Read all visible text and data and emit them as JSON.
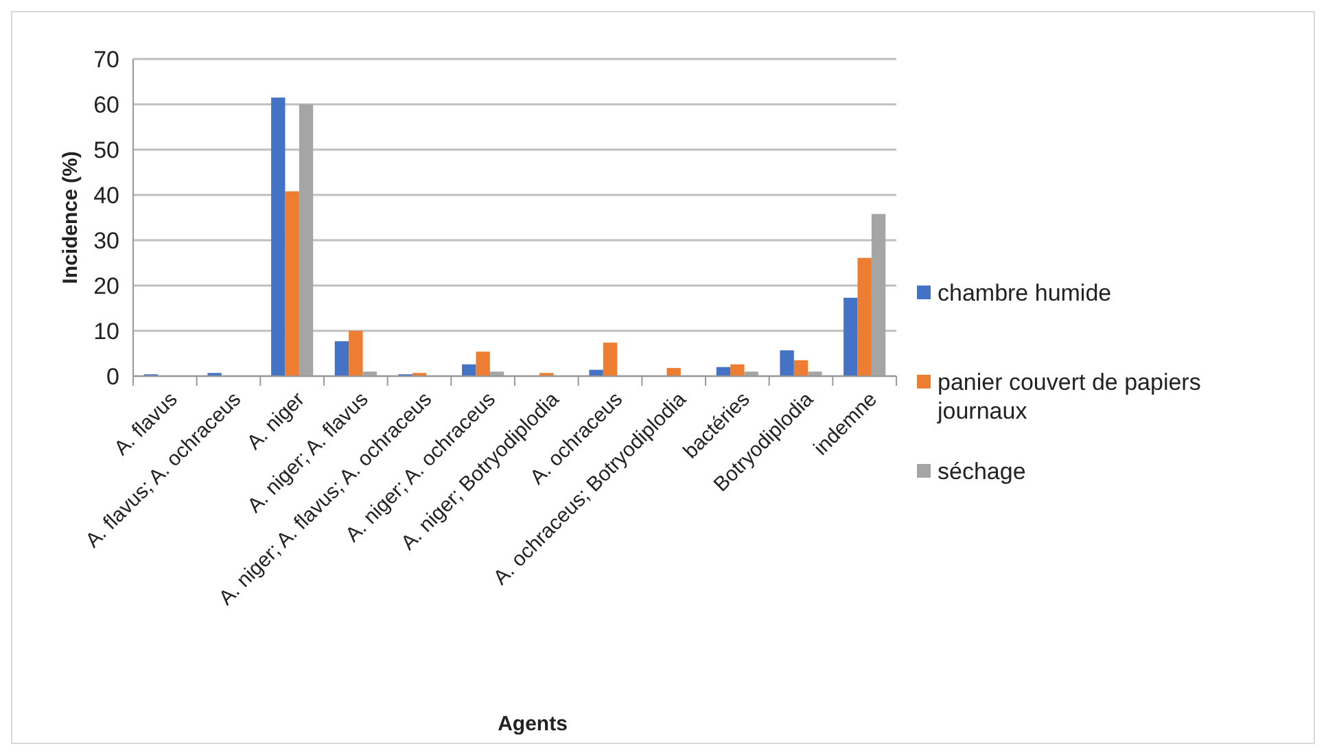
{
  "chart_data": {
    "type": "bar",
    "xlabel": "Agents",
    "ylabel": "Incidence (%)",
    "categories": [
      "A. flavus",
      "A. flavus; A. ochraceus",
      "A. niger",
      "A. niger; A. flavus",
      "A. niger; A. flavus; A. ochraceus",
      "A. niger; A. ochraceus",
      "A. niger; Botryodiplodia",
      "A. ochraceus",
      "A. ochraceus; Botryodiplodia",
      "bactéries",
      "Botryodiplodia",
      "indemne"
    ],
    "series": [
      {
        "name": "chambre humide",
        "color": "#4472c4",
        "values": [
          0.4,
          0.7,
          61.5,
          7.7,
          0.4,
          2.6,
          0,
          1.4,
          0,
          2,
          5.7,
          17.3
        ]
      },
      {
        "name": "panier couvert de papiers journaux",
        "color": "#ed7d31",
        "values": [
          0,
          0,
          40.8,
          10,
          0.7,
          5.4,
          0.7,
          7.4,
          1.8,
          2.6,
          3.5,
          26.1
        ]
      },
      {
        "name": "séchage",
        "color": "#a5a5a5",
        "values": [
          0,
          0,
          60,
          1,
          0,
          1,
          0,
          0,
          0,
          1,
          1,
          35.8
        ]
      }
    ],
    "ylim": [
      0,
      70
    ],
    "yticks": [
      0,
      10,
      20,
      30,
      40,
      50,
      60,
      70
    ],
    "grid": "y",
    "legend": "right"
  }
}
